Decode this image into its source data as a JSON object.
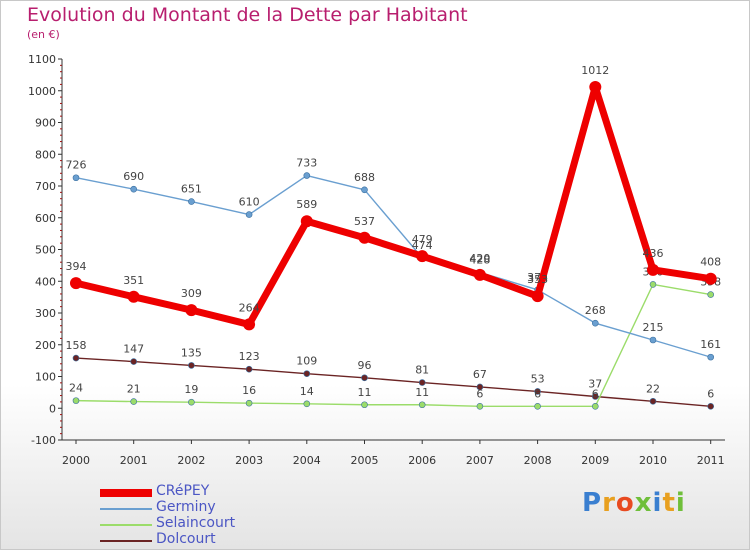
{
  "title": "Evolution du Montant de la Dette par Habitant",
  "subtitle": "(en €)",
  "logo": "Proxiti",
  "chart_data": {
    "type": "line",
    "title": "Evolution du Montant de la Dette par Habitant",
    "ylabel": "(en €)",
    "x": [
      "2000",
      "2001",
      "2002",
      "2003",
      "2004",
      "2005",
      "2006",
      "2007",
      "2008",
      "2009",
      "2010",
      "2011"
    ],
    "ylim": [
      -100,
      1100
    ],
    "yticks": [
      -100,
      0,
      100,
      200,
      300,
      400,
      500,
      600,
      700,
      800,
      900,
      1000,
      1100
    ],
    "grid": false,
    "legend": "bottom-left",
    "series": [
      {
        "name": "CRéPEY",
        "color": "#ee0000",
        "values": [
          394,
          351,
          309,
          264,
          589,
          537,
          479,
          420,
          353,
          1012,
          436,
          408
        ]
      },
      {
        "name": "Germiny",
        "color": "#6a9fd0",
        "values": [
          726,
          690,
          651,
          610,
          733,
          688,
          474,
          428,
          373,
          268,
          215,
          161
        ]
      },
      {
        "name": "Selaincourt",
        "color": "#9bdc6a",
        "values": [
          24,
          21,
          19,
          16,
          14,
          11,
          11,
          6,
          6,
          6,
          390,
          358
        ]
      },
      {
        "name": "Dolcourt",
        "color": "#6b2424",
        "values": [
          158,
          147,
          135,
          123,
          109,
          96,
          81,
          67,
          53,
          37,
          22,
          6
        ]
      }
    ]
  }
}
